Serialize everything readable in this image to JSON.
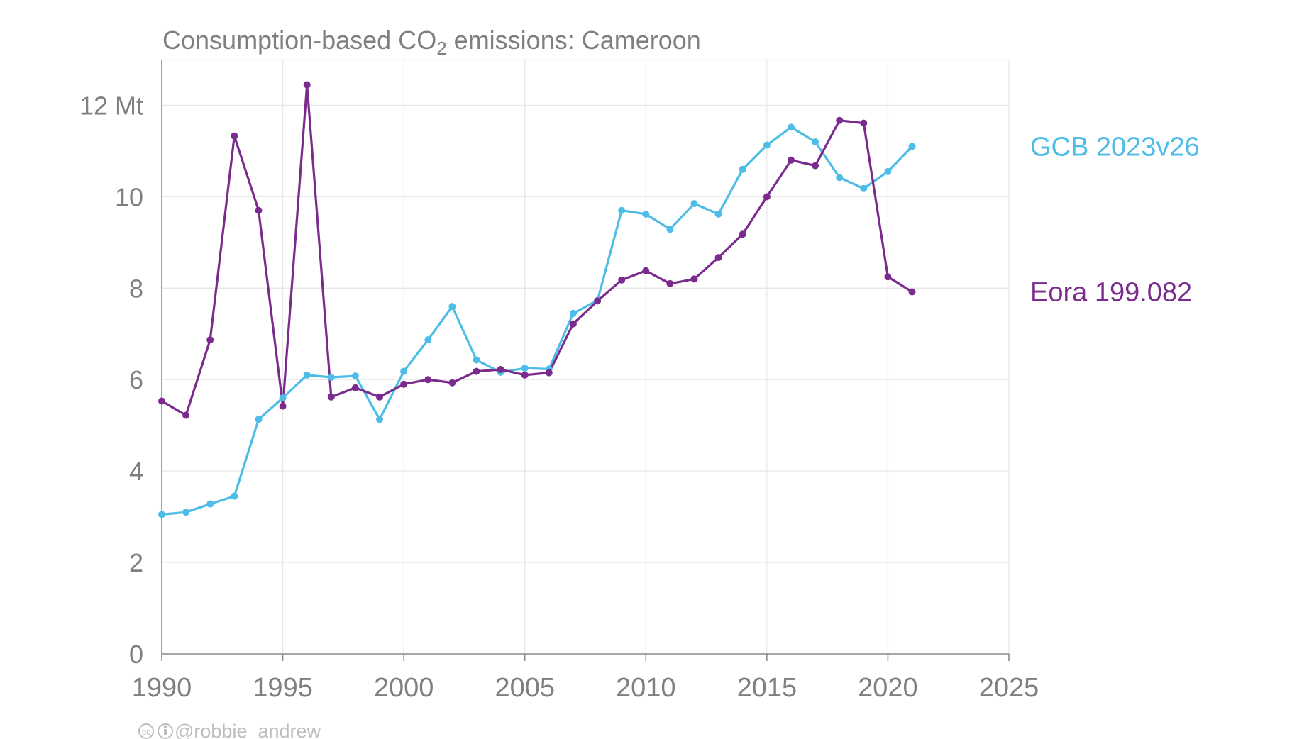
{
  "chart_data": {
    "type": "line",
    "title": "Consumption-based CO₂ emissions: Cameroon",
    "x": [
      1990,
      1991,
      1992,
      1993,
      1994,
      1995,
      1996,
      1997,
      1998,
      1999,
      2000,
      2001,
      2002,
      2003,
      2004,
      2005,
      2006,
      2007,
      2008,
      2009,
      2010,
      2011,
      2012,
      2013,
      2014,
      2015,
      2016,
      2017,
      2018,
      2019,
      2020,
      2021
    ],
    "series": [
      {
        "name": "GCB 2023v26",
        "color": "#4dbde8",
        "values": [
          3.05,
          3.1,
          3.28,
          3.45,
          5.13,
          5.6,
          6.1,
          6.05,
          6.08,
          5.13,
          6.18,
          6.87,
          7.6,
          6.43,
          6.16,
          6.25,
          6.23,
          7.45,
          7.73,
          9.7,
          9.62,
          9.29,
          9.85,
          9.62,
          10.6,
          11.13,
          11.52,
          11.2,
          10.42,
          10.18,
          10.55,
          11.1
        ]
      },
      {
        "name": "Eora 199.082",
        "color": "#7b2b8e",
        "values": [
          5.53,
          5.22,
          6.87,
          11.33,
          9.7,
          5.42,
          12.45,
          5.62,
          5.82,
          5.62,
          5.9,
          6.0,
          5.93,
          6.18,
          6.22,
          6.1,
          6.15,
          7.22,
          7.72,
          8.18,
          8.38,
          8.1,
          8.2,
          8.67,
          9.18,
          10.0,
          10.8,
          10.68,
          11.67,
          11.61,
          8.25,
          7.92
        ]
      }
    ],
    "xlim": [
      1990,
      2025
    ],
    "ylim": [
      0,
      13
    ],
    "x_ticks": [
      "1990",
      "1995",
      "2000",
      "2005",
      "2010",
      "2015",
      "2020",
      "2025"
    ],
    "y_ticks": [
      "0",
      "2",
      "4",
      "6",
      "8",
      "10",
      "12 Mt"
    ],
    "grid": true
  },
  "credit": "@robbie_andrew"
}
